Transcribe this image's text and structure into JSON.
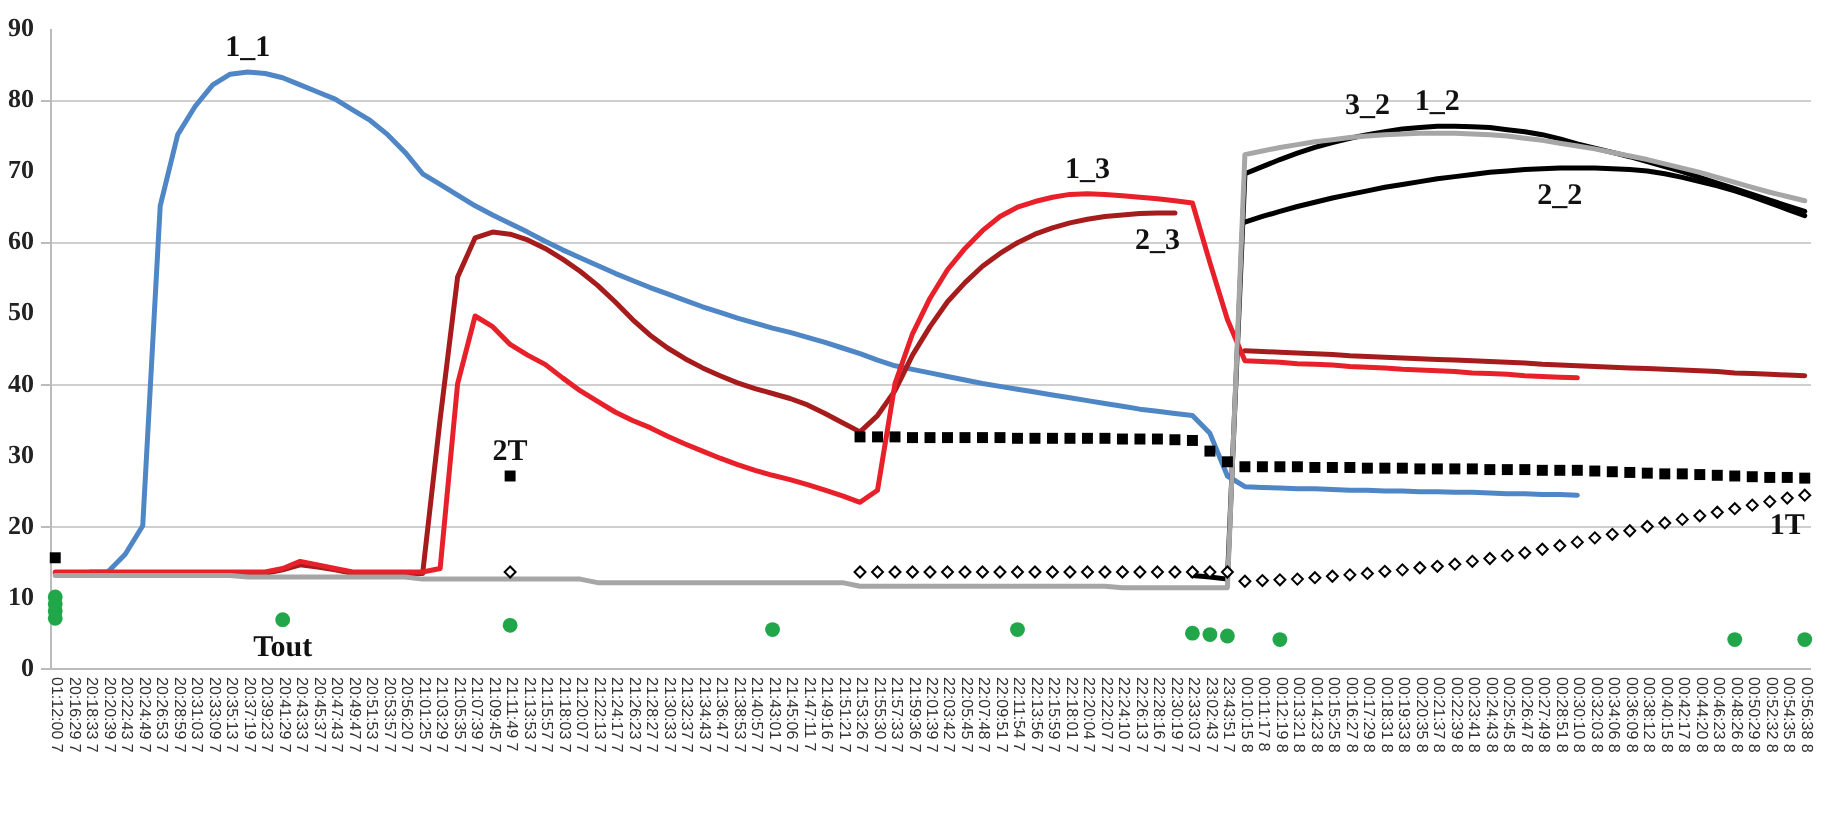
{
  "chart_data": {
    "type": "line",
    "categories": [
      "01:12:00 7",
      "20:16:29 7",
      "20:18:33 7",
      "20:20:39 7",
      "20:22:43 7",
      "20:24:49 7",
      "20:26:53 7",
      "20:28:59 7",
      "20:31:03 7",
      "20:33:09 7",
      "20:35:13 7",
      "20:37:19 7",
      "20:39:23 7",
      "20:41:29 7",
      "20:43:33 7",
      "20:45:37 7",
      "20:47:43 7",
      "20:49:47 7",
      "20:51:53 7",
      "20:53:57 7",
      "20:56:20 7",
      "21:01:25 7",
      "21:03:29 7",
      "21:05:35 7",
      "21:07:39 7",
      "21:09:45 7",
      "21:11:49 7",
      "21:13:53 7",
      "21:15:57 7",
      "21:18:03 7",
      "21:20:07 7",
      "21:22:13 7",
      "21:24:17 7",
      "21:26:23 7",
      "21:28:27 7",
      "21:30:33 7",
      "21:32:37 7",
      "21:34:43 7",
      "21:36:47 7",
      "21:38:53 7",
      "21:40:57 7",
      "21:43:01 7",
      "21:45:06 7",
      "21:47:11 7",
      "21:49:16 7",
      "21:51:21 7",
      "21:53:26 7",
      "21:55:30 7",
      "21:57:33 7",
      "21:59:36 7",
      "22:01:39 7",
      "22:03:42 7",
      "22:05:45 7",
      "22:07:48 7",
      "22:09:51 7",
      "22:11:54 7",
      "22:13:56 7",
      "22:15:59 7",
      "22:18:01 7",
      "22:20:04 7",
      "22:22:07 7",
      "22:24:10 7",
      "22:26:13 7",
      "22:28:16 7",
      "22:30:19 7",
      "22:33:03 7",
      "23:02:43 7",
      "23:43:51 7",
      "00:10:15 8",
      "00:11:17 8",
      "00:12:19 8",
      "00:13:21 8",
      "00:14:23 8",
      "00:15:25 8",
      "00:16:27 8",
      "00:17:29 8",
      "00:18:31 8",
      "00:19:33 8",
      "00:20:35 8",
      "00:21:37 8",
      "00:22:39 8",
      "00:23:41 8",
      "00:24:43 8",
      "00:25:45 8",
      "00:26:47 8",
      "00:27:49 8",
      "00:28:51 8",
      "00:30:10 8",
      "00:32:03 8",
      "00:34:06 8",
      "00:36:09 8",
      "00:38:12 8",
      "00:40:15 8",
      "00:42:17 8",
      "00:44:20 8",
      "00:46:23 8",
      "00:48:26 8",
      "00:50:29 8",
      "00:52:32 8",
      "00:54:35 8",
      "00:56:38 8"
    ],
    "series": [
      {
        "name": "1_1",
        "color": "#4f86c6",
        "values": [
          null,
          null,
          13.5,
          13.5,
          16,
          20,
          65,
          75,
          79,
          82,
          83.5,
          83.8,
          83.6,
          83,
          82,
          81,
          80,
          78.5,
          77,
          75,
          72.5,
          69.5,
          68,
          66.5,
          65,
          63.7,
          62.5,
          61.3,
          60,
          58.8,
          57.7,
          56.6,
          55.5,
          54.5,
          53.5,
          52.6,
          51.7,
          50.8,
          50,
          49.2,
          48.5,
          47.8,
          47.2,
          46.5,
          45.8,
          45,
          44.2,
          43.3,
          42.5,
          42,
          41.5,
          41,
          40.5,
          40,
          39.6,
          39.2,
          38.8,
          38.4,
          38,
          37.6,
          37.2,
          36.8,
          36.4,
          36.1,
          35.8,
          35.5,
          33,
          27,
          25.5,
          25.4,
          25.3,
          25.2,
          25.2,
          25.1,
          25.0,
          25.0,
          24.9,
          24.9,
          24.8,
          24.8,
          24.7,
          24.7,
          24.6,
          24.5,
          24.5,
          24.4,
          24.4,
          24.3,
          null,
          null,
          null,
          null,
          null,
          null,
          null,
          null,
          null,
          null,
          null,
          null,
          null
        ]
      },
      {
        "name": "2_3",
        "color": "#a61c1c",
        "values": [
          13.3,
          13.3,
          13.3,
          13.3,
          13.3,
          13.3,
          13.3,
          13.3,
          13.3,
          13.3,
          13.3,
          13.3,
          13.3,
          13.8,
          14.5,
          14.2,
          13.8,
          13.3,
          13.3,
          13.3,
          13.3,
          13.3,
          35,
          55,
          60.5,
          61.3,
          61,
          60.2,
          59,
          57.5,
          55.8,
          53.8,
          51.5,
          49,
          46.8,
          45,
          43.5,
          42.2,
          41.1,
          40.1,
          39.3,
          38.6,
          37.9,
          37,
          35.8,
          34.5,
          33.2,
          35.5,
          39,
          44,
          48,
          51.5,
          54.2,
          56.5,
          58.3,
          59.8,
          61,
          61.9,
          62.6,
          63.1,
          63.5,
          63.7,
          63.9,
          64,
          64,
          null,
          null,
          null,
          44.6,
          44.5,
          44.4,
          44.3,
          44.2,
          44.1,
          43.9,
          43.8,
          43.7,
          43.6,
          43.5,
          43.4,
          43.3,
          43.2,
          43.1,
          43.0,
          42.9,
          42.7,
          42.6,
          42.5,
          42.4,
          42.3,
          42.2,
          42.1,
          42.0,
          41.9,
          41.8,
          41.7,
          41.5,
          41.4,
          41.3,
          41.2,
          41.1
        ]
      },
      {
        "name": "1_3",
        "color": "#e8202a",
        "values": [
          13.5,
          13.5,
          13.5,
          13.5,
          13.5,
          13.5,
          13.5,
          13.5,
          13.5,
          13.5,
          13.5,
          13.5,
          13.5,
          14,
          15,
          14.5,
          14,
          13.5,
          13.5,
          13.5,
          13.5,
          13.5,
          14,
          40,
          49.5,
          48,
          45.5,
          44,
          42.7,
          40.8,
          39,
          37.5,
          36,
          34.8,
          33.8,
          32.6,
          31.5,
          30.5,
          29.5,
          28.6,
          27.8,
          27.1,
          26.5,
          25.8,
          25,
          24.2,
          23.3,
          25,
          40,
          47,
          52,
          56,
          59,
          61.5,
          63.5,
          64.8,
          65.6,
          66.2,
          66.6,
          66.7,
          66.6,
          66.4,
          66.2,
          66,
          65.7,
          65.4,
          57,
          49,
          43.2,
          43.1,
          43.0,
          42.8,
          42.7,
          42.6,
          42.4,
          42.3,
          42.2,
          42.0,
          41.9,
          41.8,
          41.7,
          41.5,
          41.4,
          41.3,
          41.1,
          41.0,
          40.9,
          40.8,
          null,
          null,
          null,
          null,
          null,
          null,
          null,
          null,
          null,
          null,
          null,
          null,
          null
        ]
      },
      {
        "name": "1_2",
        "color": "#000000",
        "values": [
          null,
          null,
          null,
          null,
          null,
          null,
          null,
          null,
          null,
          null,
          null,
          null,
          null,
          null,
          null,
          null,
          null,
          null,
          null,
          null,
          null,
          null,
          null,
          null,
          null,
          null,
          null,
          null,
          null,
          null,
          null,
          null,
          null,
          null,
          null,
          null,
          null,
          null,
          null,
          null,
          null,
          null,
          null,
          null,
          null,
          null,
          null,
          null,
          null,
          null,
          null,
          null,
          null,
          null,
          null,
          null,
          null,
          null,
          null,
          null,
          null,
          null,
          null,
          null,
          null,
          13,
          12.8,
          12.5,
          69.5,
          70.5,
          71.5,
          72.4,
          73.2,
          73.9,
          74.5,
          75,
          75.4,
          75.8,
          76,
          76.2,
          76.2,
          76.1,
          76,
          75.7,
          75.4,
          75,
          74.4,
          73.7,
          73.1,
          72.5,
          71.9,
          71.2,
          70.5,
          69.8,
          69,
          68.2,
          67.4,
          66.6,
          65.8,
          65,
          64.2
        ]
      },
      {
        "name": "2_2",
        "color": "#000000",
        "values": [
          null,
          null,
          null,
          null,
          null,
          null,
          null,
          null,
          null,
          null,
          null,
          null,
          null,
          null,
          null,
          null,
          null,
          null,
          null,
          null,
          null,
          null,
          null,
          null,
          null,
          null,
          null,
          null,
          null,
          null,
          null,
          null,
          null,
          null,
          null,
          null,
          null,
          null,
          null,
          null,
          null,
          null,
          null,
          null,
          null,
          null,
          null,
          null,
          null,
          null,
          null,
          null,
          null,
          null,
          null,
          null,
          null,
          null,
          null,
          null,
          null,
          null,
          null,
          null,
          null,
          null,
          null,
          null,
          62.7,
          63.5,
          64.2,
          64.9,
          65.5,
          66.1,
          66.6,
          67.1,
          67.6,
          68,
          68.4,
          68.8,
          69.1,
          69.4,
          69.7,
          69.9,
          70.1,
          70.2,
          70.3,
          70.3,
          70.3,
          70.2,
          70.1,
          69.9,
          69.5,
          69,
          68.4,
          67.8,
          67.1,
          66.3,
          65.4,
          64.5,
          63.6
        ]
      },
      {
        "name": "3_2",
        "color": "#a6a6a6",
        "values": [
          13,
          13,
          13,
          13,
          13,
          13,
          13,
          13,
          13,
          13,
          13,
          12.8,
          12.8,
          12.8,
          12.8,
          12.8,
          12.8,
          12.8,
          12.8,
          12.8,
          12.8,
          12.5,
          12.5,
          12.5,
          12.5,
          12.5,
          12.5,
          12.5,
          12.5,
          12.5,
          12.5,
          12,
          12,
          12,
          12,
          12,
          12,
          12,
          12,
          12,
          12,
          12,
          12,
          12,
          12,
          12,
          11.5,
          11.5,
          11.5,
          11.5,
          11.5,
          11.5,
          11.5,
          11.5,
          11.5,
          11.5,
          11.5,
          11.5,
          11.5,
          11.5,
          11.5,
          11.3,
          11.3,
          11.3,
          11.3,
          11.3,
          11.3,
          11.3,
          72.2,
          72.7,
          73.2,
          73.6,
          74,
          74.3,
          74.6,
          74.8,
          75,
          75.1,
          75.2,
          75.2,
          75.2,
          75.1,
          75,
          74.8,
          74.5,
          74.2,
          73.8,
          73.4,
          73,
          72.5,
          72,
          71.5,
          70.9,
          70.3,
          69.7,
          69,
          68.3,
          67.6,
          66.9,
          66.3,
          65.7
        ]
      },
      {
        "name": "2T",
        "type": "scatter",
        "marker": "square",
        "color": "#000000",
        "values": [
          15.5,
          null,
          null,
          null,
          null,
          null,
          null,
          null,
          null,
          null,
          null,
          null,
          null,
          null,
          null,
          null,
          null,
          null,
          null,
          null,
          null,
          null,
          null,
          null,
          null,
          null,
          27,
          null,
          null,
          null,
          null,
          null,
          null,
          null,
          null,
          null,
          null,
          null,
          null,
          null,
          null,
          null,
          null,
          null,
          null,
          null,
          32.5,
          32.5,
          32.5,
          32.4,
          32.4,
          32.4,
          32.4,
          32.4,
          32.4,
          32.3,
          32.3,
          32.3,
          32.3,
          32.3,
          32.3,
          32.2,
          32.2,
          32.2,
          32.1,
          32,
          30.5,
          29,
          28.3,
          28.3,
          28.3,
          28.3,
          28.2,
          28.2,
          28.2,
          28.1,
          28.1,
          28.1,
          28.0,
          28.0,
          28.0,
          28.0,
          27.9,
          27.9,
          27.9,
          27.8,
          27.8,
          27.8,
          27.7,
          27.6,
          27.5,
          27.4,
          27.3,
          27.3,
          27.2,
          27.1,
          27,
          26.9,
          26.8,
          26.8,
          26.7
        ]
      },
      {
        "name": "1T",
        "type": "scatter",
        "marker": "diamond",
        "color": "#000000",
        "values": [
          null,
          null,
          null,
          null,
          null,
          null,
          null,
          null,
          null,
          null,
          null,
          null,
          null,
          null,
          null,
          null,
          null,
          null,
          null,
          null,
          null,
          null,
          null,
          null,
          null,
          null,
          13.5,
          null,
          null,
          null,
          null,
          null,
          null,
          null,
          null,
          null,
          null,
          null,
          null,
          null,
          null,
          null,
          null,
          null,
          null,
          null,
          13.5,
          13.5,
          13.5,
          13.5,
          13.5,
          13.5,
          13.5,
          13.5,
          13.5,
          13.5,
          13.5,
          13.5,
          13.5,
          13.5,
          13.5,
          13.5,
          13.5,
          13.5,
          13.5,
          13.5,
          13.5,
          13.5,
          12.2,
          12.3,
          12.4,
          12.5,
          12.7,
          12.9,
          13.1,
          13.3,
          13.6,
          13.8,
          14.1,
          14.3,
          14.6,
          15,
          15.4,
          15.8,
          16.2,
          16.7,
          17.2,
          17.7,
          18.3,
          18.8,
          19.3,
          19.9,
          20.4,
          20.9,
          21.4,
          21.9,
          22.4,
          22.9,
          23.4,
          23.9,
          24.3
        ]
      },
      {
        "name": "Tout",
        "type": "scatter",
        "marker": "circle",
        "color": "#22a64a",
        "x": [
          "01:12:00 7",
          "01:12:00 7",
          "01:12:00 7",
          "01:12:00 7",
          "20:41:29 7",
          "21:11:49 7",
          "21:43:01 7",
          "22:11:54 7",
          "22:33:03 7",
          "23:02:43 7",
          "23:43:51 7",
          "00:12:19 8",
          "00:48:26 8",
          "00:56:38 8"
        ],
        "values": [
          10,
          9,
          8,
          7,
          6.8,
          6,
          5.4,
          5.4,
          4.9,
          4.7,
          4.5,
          4,
          4,
          4
        ]
      }
    ],
    "ylim": [
      0,
      90
    ],
    "yticks": [
      0,
      10,
      20,
      30,
      40,
      50,
      60,
      70,
      80,
      90
    ],
    "grid": "y"
  }
}
